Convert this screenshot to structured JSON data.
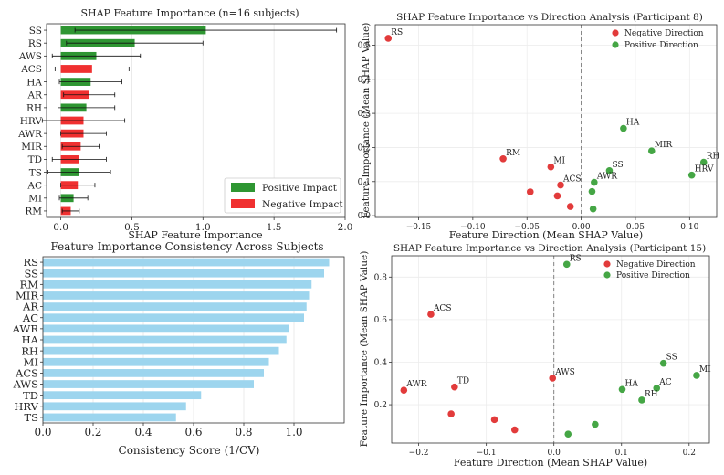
{
  "chart_data": [
    {
      "type": "bar",
      "orientation": "horizontal",
      "title": "SHAP Feature Importance (n=16 subjects)",
      "xlabel": "SHAP Feature Importance",
      "ylabel": "",
      "xlim": [
        -0.1,
        2.0
      ],
      "xticks": [
        "0.0",
        "0.5",
        "1.0",
        "1.5",
        "2.0"
      ],
      "categories": [
        "SS",
        "RS",
        "AWS",
        "ACS",
        "HA",
        "AR",
        "RH",
        "HRV",
        "AWR",
        "MIR",
        "TD",
        "TS",
        "AC",
        "MI",
        "RM"
      ],
      "values": [
        1.02,
        0.52,
        0.25,
        0.22,
        0.21,
        0.2,
        0.18,
        0.16,
        0.16,
        0.14,
        0.13,
        0.13,
        0.12,
        0.09,
        0.07
      ],
      "errors": [
        0.92,
        0.48,
        0.31,
        0.26,
        0.22,
        0.18,
        0.2,
        0.29,
        0.16,
        0.13,
        0.19,
        0.22,
        0.12,
        0.1,
        0.06
      ],
      "direction": [
        "positive",
        "positive",
        "positive",
        "negative",
        "positive",
        "negative",
        "positive",
        "negative",
        "negative",
        "negative",
        "negative",
        "positive",
        "negative",
        "positive",
        "negative"
      ],
      "legend": [
        {
          "label": "Positive Impact",
          "color": "#2e9632"
        },
        {
          "label": "Negative Impact",
          "color": "#f03030"
        }
      ],
      "legend_position": "lower-right"
    },
    {
      "type": "scatter",
      "title": "SHAP Feature Importance vs Direction Analysis (Participant 8)",
      "xlabel": "Feature Direction (Mean SHAP Value)",
      "ylabel": "Feature Importance (Mean SHAP Value)",
      "xlim": [
        -0.19,
        0.125
      ],
      "ylim": [
        -0.005,
        0.56
      ],
      "xticks": [
        -0.15,
        -0.1,
        -0.05,
        0.0,
        0.05,
        0.1
      ],
      "xtick_labels": [
        "−0.15",
        "−0.10",
        "−0.05",
        "0.00",
        "0.05",
        "0.10"
      ],
      "yticks": [
        0.0,
        0.1,
        0.2,
        0.3,
        0.4,
        0.5
      ],
      "ytick_labels": [
        "0.0",
        "0.1",
        "0.2",
        "0.3",
        "0.4",
        "0.5"
      ],
      "legend": [
        {
          "label": "Negative Direction",
          "color": "#e23b3b"
        },
        {
          "label": "Positive Direction",
          "color": "#45a645"
        }
      ],
      "legend_position": "top-right",
      "points": [
        {
          "label": "RS",
          "x": -0.178,
          "y": 0.52,
          "dir": "negative"
        },
        {
          "label": "RM",
          "x": -0.072,
          "y": 0.167,
          "dir": "negative"
        },
        {
          "label": "MI",
          "x": -0.028,
          "y": 0.143,
          "dir": "negative"
        },
        {
          "label": "ACS",
          "x": -0.019,
          "y": 0.09,
          "dir": "negative"
        },
        {
          "label": "",
          "x": -0.047,
          "y": 0.07,
          "dir": "negative"
        },
        {
          "label": "",
          "x": -0.022,
          "y": 0.058,
          "dir": "negative"
        },
        {
          "label": "",
          "x": -0.01,
          "y": 0.027,
          "dir": "negative"
        },
        {
          "label": "HA",
          "x": 0.039,
          "y": 0.256,
          "dir": "positive"
        },
        {
          "label": "MIR",
          "x": 0.065,
          "y": 0.19,
          "dir": "positive"
        },
        {
          "label": "RH",
          "x": 0.113,
          "y": 0.157,
          "dir": "positive"
        },
        {
          "label": "SS",
          "x": 0.026,
          "y": 0.132,
          "dir": "positive"
        },
        {
          "label": "HRV",
          "x": 0.102,
          "y": 0.119,
          "dir": "positive"
        },
        {
          "label": "AWR",
          "x": 0.012,
          "y": 0.098,
          "dir": "positive"
        },
        {
          "label": "",
          "x": 0.01,
          "y": 0.071,
          "dir": "positive"
        },
        {
          "label": "",
          "x": 0.011,
          "y": 0.02,
          "dir": "positive"
        }
      ],
      "reference_line_x": 0.0
    },
    {
      "type": "bar",
      "orientation": "horizontal",
      "title": "Feature Importance Consistency Across Subjects",
      "xlabel": "Consistency Score (1/CV)",
      "ylabel": "",
      "xlim": [
        0.0,
        1.2
      ],
      "xticks": [
        "0.0",
        "0.2",
        "0.4",
        "0.6",
        "0.8",
        "1.0"
      ],
      "categories": [
        "RS",
        "SS",
        "RM",
        "MIR",
        "AR",
        "AC",
        "AWR",
        "HA",
        "RH",
        "MI",
        "ACS",
        "AWS",
        "TD",
        "HRV",
        "TS"
      ],
      "values": [
        1.14,
        1.12,
        1.07,
        1.06,
        1.05,
        1.04,
        0.98,
        0.97,
        0.94,
        0.9,
        0.88,
        0.84,
        0.63,
        0.57,
        0.53
      ],
      "color": "#9dd5ee"
    },
    {
      "type": "scatter",
      "title": "SHAP Feature Importance vs Direction Analysis (Participant 15)",
      "xlabel": "Feature Direction (Mean SHAP Value)",
      "ylabel": "Feature Importance (Mean SHAP Value)",
      "xlim": [
        -0.24,
        0.23
      ],
      "ylim": [
        0.02,
        0.9
      ],
      "xticks": [
        -0.2,
        -0.1,
        0.0,
        0.1,
        0.2
      ],
      "xtick_labels": [
        "−0.2",
        "−0.1",
        "0.0",
        "0.1",
        "0.2"
      ],
      "yticks": [
        0.2,
        0.4,
        0.6,
        0.8
      ],
      "ytick_labels": [
        "0.2",
        "0.4",
        "0.6",
        "0.8"
      ],
      "legend": [
        {
          "label": "Negative Direction",
          "color": "#e23b3b"
        },
        {
          "label": "Positive Direction",
          "color": "#45a645"
        }
      ],
      "legend_position": "top-right",
      "points": [
        {
          "label": "ACS",
          "x": -0.182,
          "y": 0.625,
          "dir": "negative"
        },
        {
          "label": "AWR",
          "x": -0.222,
          "y": 0.268,
          "dir": "negative"
        },
        {
          "label": "TD",
          "x": -0.147,
          "y": 0.283,
          "dir": "negative"
        },
        {
          "label": "AWS",
          "x": -0.002,
          "y": 0.325,
          "dir": "negative"
        },
        {
          "label": "",
          "x": -0.152,
          "y": 0.157,
          "dir": "negative"
        },
        {
          "label": "",
          "x": -0.088,
          "y": 0.13,
          "dir": "negative"
        },
        {
          "label": "",
          "x": -0.058,
          "y": 0.082,
          "dir": "negative"
        },
        {
          "label": "RS",
          "x": 0.019,
          "y": 0.86,
          "dir": "positive"
        },
        {
          "label": "SS",
          "x": 0.162,
          "y": 0.395,
          "dir": "positive"
        },
        {
          "label": "MI",
          "x": 0.211,
          "y": 0.338,
          "dir": "positive"
        },
        {
          "label": "AC",
          "x": 0.152,
          "y": 0.278,
          "dir": "positive"
        },
        {
          "label": "HA",
          "x": 0.101,
          "y": 0.272,
          "dir": "positive"
        },
        {
          "label": "RH",
          "x": 0.13,
          "y": 0.222,
          "dir": "positive"
        },
        {
          "label": "",
          "x": 0.061,
          "y": 0.108,
          "dir": "positive"
        },
        {
          "label": "",
          "x": 0.021,
          "y": 0.062,
          "dir": "positive"
        }
      ],
      "reference_line_x": 0.0
    }
  ]
}
